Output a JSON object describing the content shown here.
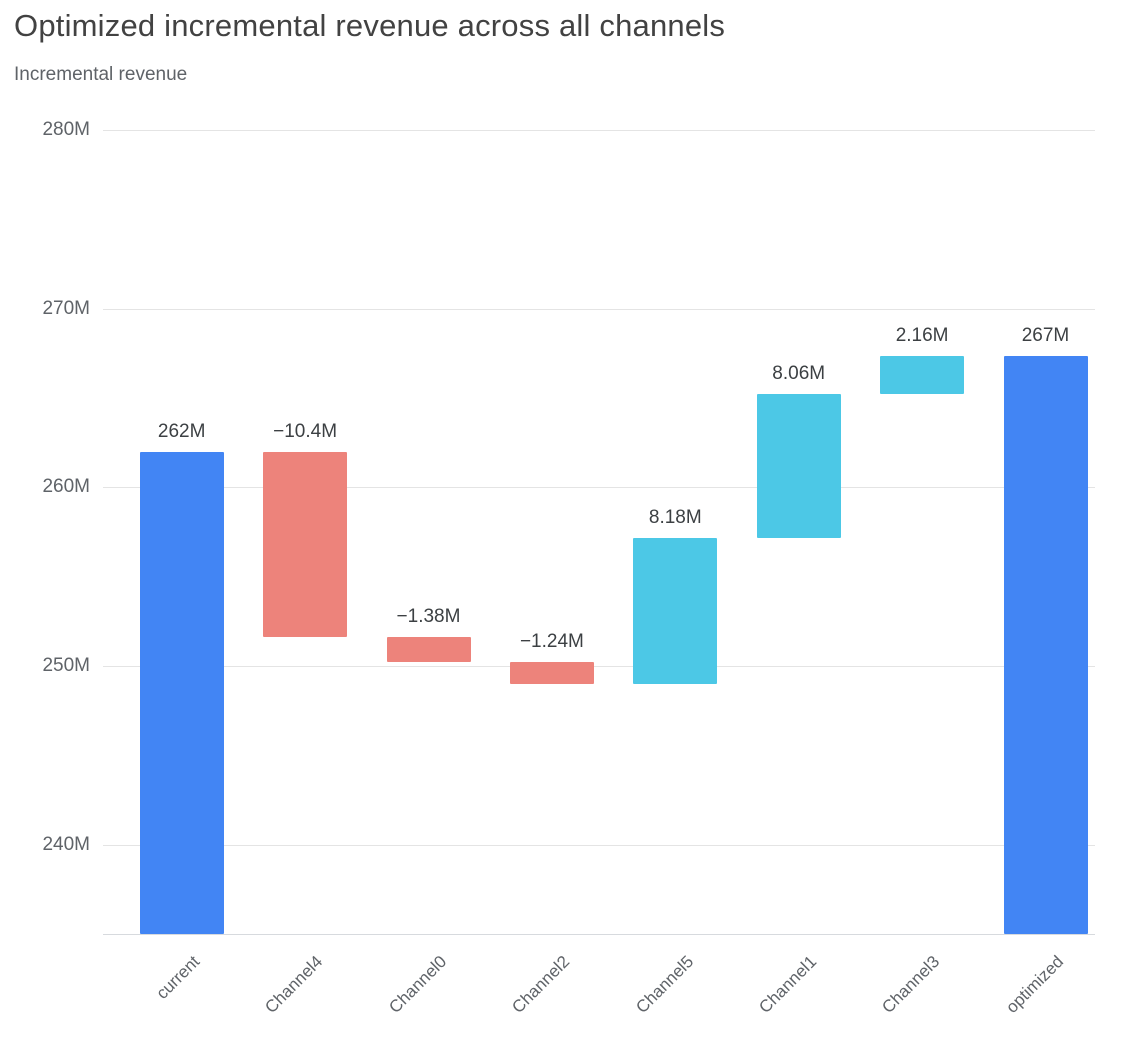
{
  "header": {
    "title": "Optimized incremental revenue across all channels",
    "subtitle": "Incremental revenue"
  },
  "chart_data": {
    "type": "waterfall",
    "title": "Optimized incremental revenue across all channels",
    "ylabel": "Incremental revenue",
    "unit": "M",
    "ylim": [
      235,
      280
    ],
    "grid": true,
    "legend": "none",
    "yticks": [
      {
        "value": 280,
        "label": "280M"
      },
      {
        "value": 270,
        "label": "270M"
      },
      {
        "value": 260,
        "label": "260M"
      },
      {
        "value": 250,
        "label": "250M"
      },
      {
        "value": 240,
        "label": "240M"
      }
    ],
    "colors": {
      "total": "#4285f4",
      "negative": "#ed837b",
      "positive": "#4cc8e6"
    },
    "categories": [
      "current",
      "Channel4",
      "Channel0",
      "Channel2",
      "Channel5",
      "Channel1",
      "Channel3",
      "optimized"
    ],
    "bars": [
      {
        "category": "current",
        "kind": "total",
        "start": 235,
        "end": 262,
        "value": 262,
        "label": "262M"
      },
      {
        "category": "Channel4",
        "kind": "negative",
        "start": 262,
        "end": 251.6,
        "value": -10.4,
        "label": "−10.4M"
      },
      {
        "category": "Channel0",
        "kind": "negative",
        "start": 251.6,
        "end": 250.22,
        "value": -1.38,
        "label": "−1.38M"
      },
      {
        "category": "Channel2",
        "kind": "negative",
        "start": 250.22,
        "end": 248.98,
        "value": -1.24,
        "label": "−1.24M"
      },
      {
        "category": "Channel5",
        "kind": "positive",
        "start": 248.98,
        "end": 257.16,
        "value": 8.18,
        "label": "8.18M"
      },
      {
        "category": "Channel1",
        "kind": "positive",
        "start": 257.16,
        "end": 265.22,
        "value": 8.06,
        "label": "8.06M"
      },
      {
        "category": "Channel3",
        "kind": "positive",
        "start": 265.22,
        "end": 267.38,
        "value": 2.16,
        "label": "2.16M"
      },
      {
        "category": "optimized",
        "kind": "total",
        "start": 235,
        "end": 267.38,
        "value": 267,
        "label": "267M"
      }
    ]
  }
}
